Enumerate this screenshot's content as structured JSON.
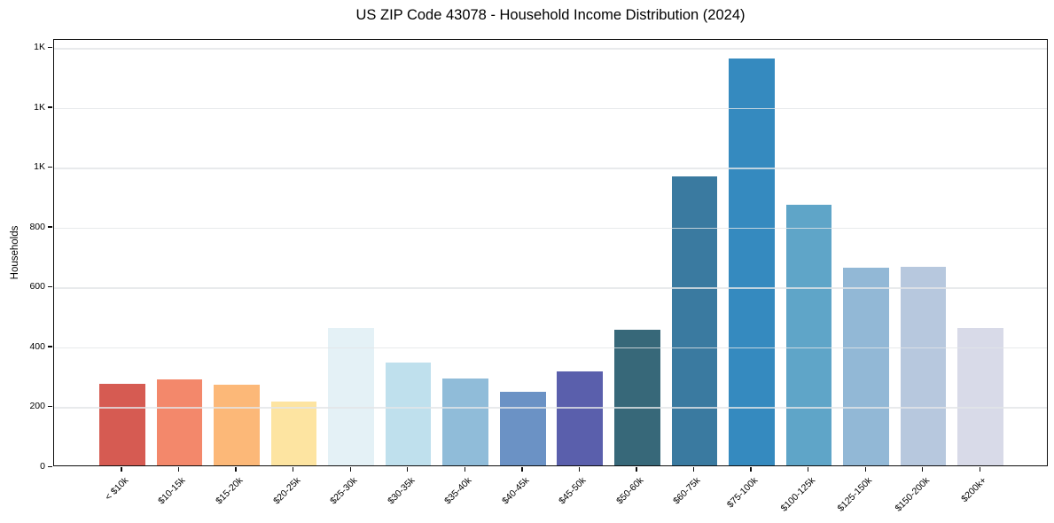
{
  "title": "US ZIP Code 43078 - Household Income Distribution (2024)",
  "chart_data": {
    "type": "bar",
    "title": "US ZIP Code 43078 - Household Income Distribution (2024)",
    "xlabel": "",
    "ylabel": "Households",
    "categories": [
      "< $10k",
      "$10-15k",
      "$15-20k",
      "$20-25k",
      "$25-30k",
      "$30-35k",
      "$35-40k",
      "$40-45k",
      "$45-50k",
      "$50-60k",
      "$60-75k",
      "$75-100k",
      "$100-125k",
      "$125-150k",
      "$150-200k",
      "$200k+"
    ],
    "values": [
      273,
      288,
      270,
      214,
      460,
      344,
      290,
      246,
      314,
      452,
      966,
      1360,
      870,
      660,
      664,
      460
    ],
    "bar_colors": [
      "#d65b52",
      "#f3886b",
      "#fcb878",
      "#fde4a1",
      "#e4f1f6",
      "#bfe0ed",
      "#90bcd9",
      "#6b92c5",
      "#5a5fac",
      "#376879",
      "#3a7aa0",
      "#358abf",
      "#5fa5c8",
      "#92b8d6",
      "#b7c8de",
      "#d8dae8"
    ],
    "ylim": [
      0,
      1428
    ],
    "xlim": [
      -1.19,
      16.19
    ],
    "bar_width_units": 0.8,
    "ytick_values": [
      0,
      200,
      400,
      600,
      800,
      1000,
      1200,
      1400
    ],
    "ytick_labels": [
      "0",
      "200",
      "400",
      "600",
      "800",
      "1K",
      "1K",
      "1K"
    ],
    "grid": "horizontal-over-bars",
    "legend": "none",
    "background_color": "#ffffff",
    "frame_color": "#0d0d0d",
    "gridline_color": "#e8eaeb",
    "text_color": "#000000"
  }
}
